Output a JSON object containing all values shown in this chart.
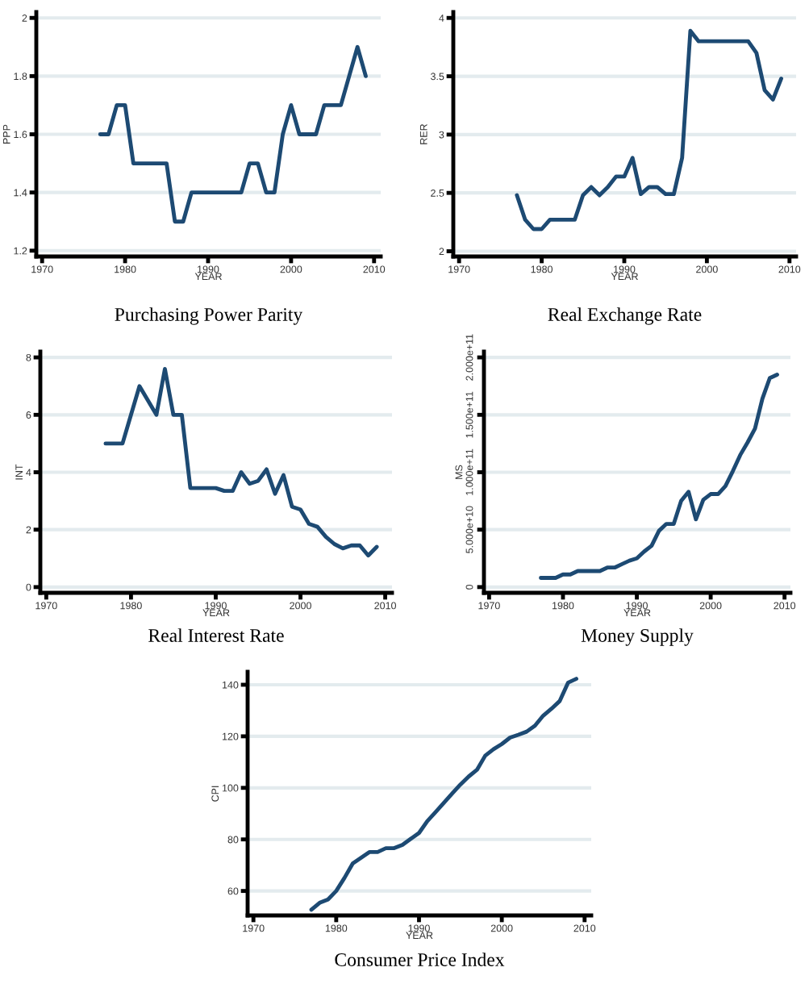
{
  "chart_data": [
    {
      "type": "line",
      "title": "Purchasing Power Parity",
      "xlabel": "YEAR",
      "ylabel": "PPP",
      "grid": "y",
      "line_style": "solid",
      "color": "#1d4a73",
      "xlim": [
        1969.3,
        2010.8
      ],
      "xticks": [
        1970,
        1980,
        1990,
        2000,
        2010
      ],
      "ylim": [
        1.18,
        2.02
      ],
      "yticks": [
        1.2,
        1.4,
        1.6,
        1.8,
        2
      ],
      "x": [
        1977,
        1978,
        1979,
        1980,
        1981,
        1982,
        1983,
        1984,
        1985,
        1986,
        1987,
        1988,
        1989,
        1990,
        1991,
        1992,
        1993,
        1994,
        1995,
        1996,
        1997,
        1998,
        1999,
        2000,
        2001,
        2002,
        2003,
        2004,
        2005,
        2006,
        2007,
        2008,
        2009
      ],
      "values": [
        1.6,
        1.6,
        1.7,
        1.7,
        1.5,
        1.5,
        1.5,
        1.5,
        1.5,
        1.3,
        1.3,
        1.4,
        1.4,
        1.4,
        1.4,
        1.4,
        1.4,
        1.4,
        1.5,
        1.5,
        1.4,
        1.4,
        1.6,
        1.7,
        1.6,
        1.6,
        1.6,
        1.7,
        1.7,
        1.7,
        1.8,
        1.9,
        1.8
      ]
    },
    {
      "type": "line",
      "title": "Real Exchange Rate",
      "xlabel": "YEAR",
      "ylabel": "RER",
      "grid": "y",
      "line_style": "solid",
      "color": "#1d4a73",
      "xlim": [
        1969.3,
        2010.8
      ],
      "xticks": [
        1970,
        1980,
        1990,
        2000,
        2010
      ],
      "ylim": [
        1.955,
        4.05
      ],
      "yticks": [
        2,
        2.5,
        3,
        3.5,
        4
      ],
      "x": [
        1977,
        1978,
        1979,
        1980,
        1981,
        1982,
        1983,
        1984,
        1985,
        1986,
        1987,
        1988,
        1989,
        1990,
        1991,
        1992,
        1993,
        1994,
        1995,
        1996,
        1997,
        1998,
        1999,
        2000,
        2001,
        2002,
        2003,
        2004,
        2005,
        2006,
        2007,
        2008,
        2009
      ],
      "values": [
        2.48,
        2.27,
        2.19,
        2.19,
        2.27,
        2.27,
        2.27,
        2.27,
        2.48,
        2.55,
        2.48,
        2.55,
        2.64,
        2.64,
        2.8,
        2.49,
        2.55,
        2.55,
        2.49,
        2.49,
        2.8,
        3.89,
        3.8,
        3.8,
        3.8,
        3.8,
        3.8,
        3.8,
        3.8,
        3.7,
        3.38,
        3.3,
        3.48
      ]
    },
    {
      "type": "line",
      "title": "Real Interest Rate",
      "xlabel": "YEAR",
      "ylabel": "INT",
      "grid": "y",
      "line_style": "solid",
      "color": "#1d4a73",
      "xlim": [
        1969.3,
        2010.8
      ],
      "xticks": [
        1970,
        1980,
        1990,
        2000,
        2010
      ],
      "ylim": [
        -0.2,
        8.2
      ],
      "yticks": [
        0,
        2,
        4,
        6,
        8
      ],
      "x": [
        1977,
        1978,
        1979,
        1980,
        1981,
        1982,
        1983,
        1984,
        1985,
        1986,
        1987,
        1988,
        1989,
        1990,
        1991,
        1992,
        1993,
        1994,
        1995,
        1996,
        1997,
        1998,
        1999,
        2000,
        2001,
        2002,
        2003,
        2004,
        2005,
        2006,
        2007,
        2008,
        2009
      ],
      "values": [
        5,
        5,
        5,
        6,
        7,
        6.5,
        6,
        7.6,
        6,
        6,
        3.45,
        3.45,
        3.45,
        3.45,
        3.35,
        3.35,
        4.0,
        3.6,
        3.7,
        4.1,
        3.25,
        3.9,
        2.8,
        2.7,
        2.2,
        2.1,
        1.75,
        1.5,
        1.35,
        1.45,
        1.45,
        1.1,
        1.4
      ]
    },
    {
      "type": "line",
      "title": "Money Supply",
      "xlabel": "YEAR",
      "ylabel": "MS",
      "grid": "y",
      "line_style": "solid",
      "color": "#1d4a73",
      "xlim": [
        1969.3,
        2010.8
      ],
      "xticks": [
        1970,
        1980,
        1990,
        2000,
        2010
      ],
      "ylim": [
        -5000000000.0,
        205000000000.0
      ],
      "yticks": [
        0,
        {
          "value": 50000000000.0,
          "label": "5.000e+10"
        },
        {
          "value": 100000000000.0,
          "label": "1.000e+11"
        },
        {
          "value": 150000000000.0,
          "label": "1.500e+11"
        },
        {
          "value": 200000000000.0,
          "label": "2.000e+11"
        }
      ],
      "x": [
        1977,
        1978,
        1979,
        1980,
        1981,
        1982,
        1983,
        1984,
        1985,
        1986,
        1987,
        1988,
        1989,
        1990,
        1991,
        1992,
        1993,
        1994,
        1995,
        1996,
        1997,
        1998,
        1999,
        2000,
        2001,
        2002,
        2003,
        2004,
        2005,
        2006,
        2007,
        2008,
        2009
      ],
      "values": [
        8000000000.0,
        8000000000.0,
        8000000000.0,
        11000000000.0,
        11000000000.0,
        14000000000.0,
        14000000000.0,
        14000000000.0,
        14000000000.0,
        17000000000.0,
        17000000000.0,
        20000000000.0,
        23000000000.0,
        25000000000.0,
        31000000000.0,
        36000000000.0,
        49000000000.0,
        55000000000.0,
        55000000000.0,
        75000000000.0,
        83000000000.0,
        59000000000.0,
        76000000000.0,
        81000000000.0,
        81000000000.0,
        88000000000.0,
        101000000000.0,
        115000000000.0,
        126000000000.0,
        138000000000.0,
        164000000000.0,
        182000000000.0,
        185000000000.0
      ]
    },
    {
      "type": "line",
      "title": "Consumer Price Index",
      "xlabel": "YEAR",
      "ylabel": "CPI",
      "grid": "y",
      "line_style": "solid",
      "color": "#1d4a73",
      "xlim": [
        1969.3,
        2010.8
      ],
      "xticks": [
        1970,
        1980,
        1990,
        2000,
        2010
      ],
      "ylim": [
        50.5,
        145
      ],
      "yticks": [
        60,
        80,
        100,
        120,
        140
      ],
      "x": [
        1977,
        1978,
        1979,
        1980,
        1981,
        1982,
        1983,
        1984,
        1985,
        1986,
        1987,
        1988,
        1989,
        1990,
        1991,
        1992,
        1993,
        1994,
        1995,
        1996,
        1997,
        1998,
        1999,
        2000,
        2001,
        2002,
        2003,
        2004,
        2005,
        2006,
        2007,
        2008,
        2009
      ],
      "values": [
        52.7,
        55.4,
        56.7,
        60,
        65.1,
        70.7,
        72.9,
        75.1,
        75.1,
        76.6,
        76.6,
        77.9,
        80.2,
        82.5,
        87.1,
        90.6,
        94.2,
        97.8,
        101.3,
        104.4,
        107,
        112.5,
        115,
        117,
        119.5,
        120.6,
        121.8,
        124.1,
        128,
        130.7,
        133.7,
        140.8,
        142.3
      ]
    }
  ]
}
